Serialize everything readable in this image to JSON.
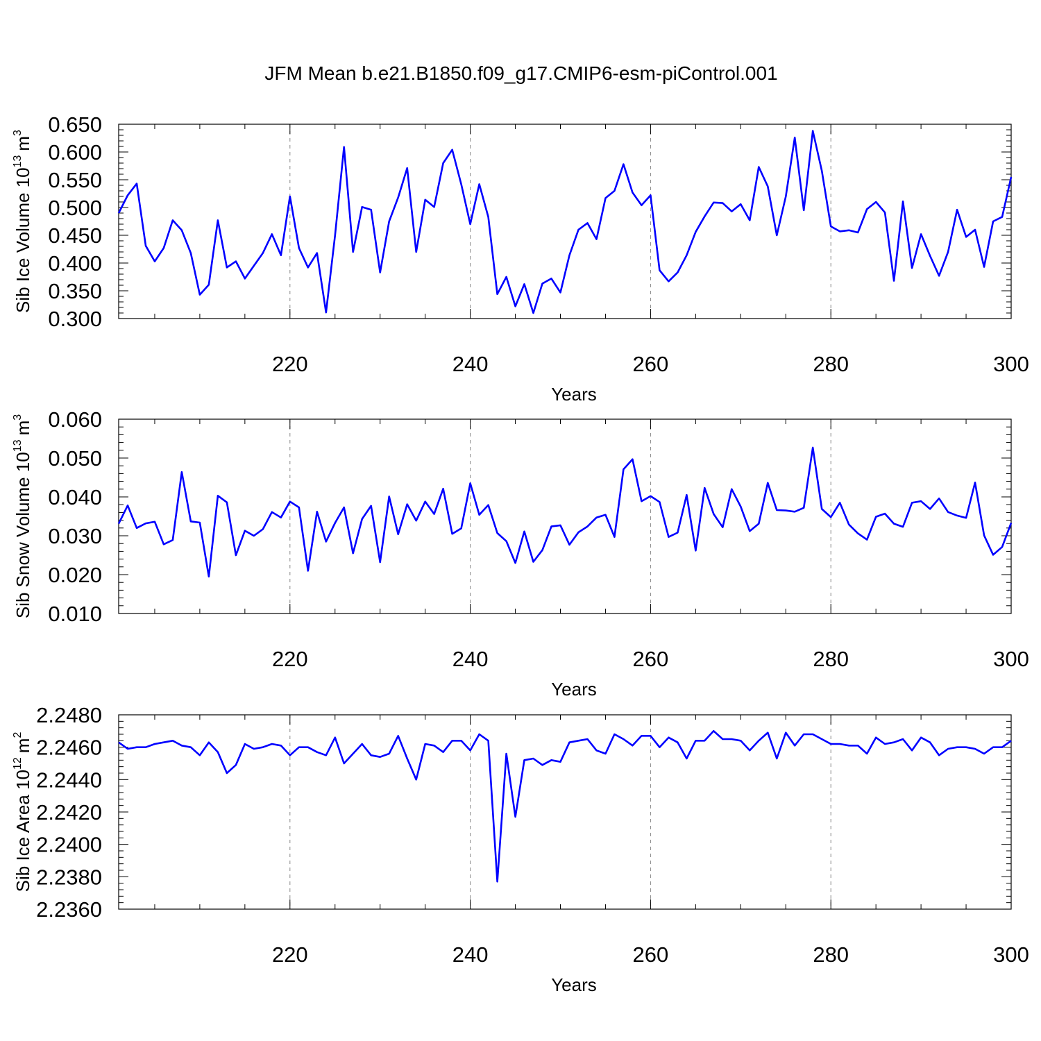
{
  "figure": {
    "title": "JFM Mean b.e21.B1850.f09_g17.CMIP6-esm-piControl.001"
  },
  "colors": {
    "series": "#0000ff",
    "axis": "#000000",
    "grid": "#888888"
  },
  "chart_data": [
    {
      "type": "line",
      "xlabel": "Years",
      "ylabel": "Sib Ice Volume 10",
      "ylabel_exponent": "13",
      "ylabel_unit": "m",
      "ylabel_unit_power": "3",
      "xlim": [
        201,
        300
      ],
      "ylim": [
        0.3,
        0.65
      ],
      "grid": "x-dashed",
      "xticks": [
        220,
        240,
        260,
        280,
        300
      ],
      "xtick_labels": [
        "220",
        "240",
        "260",
        "280",
        "300"
      ],
      "yticks": [
        0.3,
        0.35,
        0.4,
        0.45,
        0.5,
        0.55,
        0.6,
        0.65
      ],
      "ytick_labels": [
        "0.300",
        "0.350",
        "0.400",
        "0.450",
        "0.500",
        "0.550",
        "0.600",
        "0.650"
      ],
      "x_start": 201,
      "values": [
        0.49,
        0.522,
        0.543,
        0.431,
        0.403,
        0.427,
        0.477,
        0.459,
        0.418,
        0.343,
        0.361,
        0.477,
        0.392,
        0.403,
        0.372,
        0.395,
        0.418,
        0.452,
        0.414,
        0.52,
        0.427,
        0.392,
        0.418,
        0.311,
        0.45,
        0.609,
        0.42,
        0.501,
        0.496,
        0.383,
        0.475,
        0.518,
        0.571,
        0.42,
        0.514,
        0.501,
        0.58,
        0.604,
        0.542,
        0.47,
        0.542,
        0.483,
        0.344,
        0.375,
        0.322,
        0.362,
        0.31,
        0.363,
        0.372,
        0.347,
        0.414,
        0.46,
        0.472,
        0.443,
        0.517,
        0.53,
        0.578,
        0.527,
        0.504,
        0.522,
        0.387,
        0.367,
        0.383,
        0.414,
        0.456,
        0.484,
        0.509,
        0.508,
        0.493,
        0.506,
        0.477,
        0.573,
        0.538,
        0.45,
        0.52,
        0.626,
        0.495,
        0.638,
        0.566,
        0.466,
        0.457,
        0.459,
        0.455,
        0.497,
        0.51,
        0.491,
        0.368,
        0.511,
        0.391,
        0.452,
        0.413,
        0.377,
        0.42,
        0.496,
        0.447,
        0.46,
        0.393,
        0.475,
        0.483,
        0.555
      ]
    },
    {
      "type": "line",
      "xlabel": "Years",
      "ylabel": "Sib Snow Volume 10",
      "ylabel_exponent": "13",
      "ylabel_unit": "m",
      "ylabel_unit_power": "3",
      "xlim": [
        201,
        300
      ],
      "ylim": [
        0.01,
        0.06
      ],
      "grid": "x-dashed",
      "xticks": [
        220,
        240,
        260,
        280,
        300
      ],
      "xtick_labels": [
        "220",
        "240",
        "260",
        "280",
        "300"
      ],
      "yticks": [
        0.01,
        0.02,
        0.03,
        0.04,
        0.05,
        0.06
      ],
      "ytick_labels": [
        "0.010",
        "0.020",
        "0.030",
        "0.040",
        "0.050",
        "0.060"
      ],
      "x_start": 201,
      "values": [
        0.0331,
        0.0378,
        0.032,
        0.0332,
        0.0336,
        0.0278,
        0.0289,
        0.0464,
        0.0337,
        0.0334,
        0.0195,
        0.0403,
        0.0386,
        0.025,
        0.0313,
        0.03,
        0.0317,
        0.0361,
        0.0347,
        0.0388,
        0.0373,
        0.021,
        0.0362,
        0.0285,
        0.0333,
        0.0373,
        0.0255,
        0.0343,
        0.0377,
        0.0232,
        0.0401,
        0.0304,
        0.0381,
        0.0339,
        0.0388,
        0.0356,
        0.0421,
        0.0305,
        0.0319,
        0.0435,
        0.0354,
        0.0379,
        0.0307,
        0.0286,
        0.023,
        0.0311,
        0.0233,
        0.0263,
        0.0324,
        0.0327,
        0.0277,
        0.0309,
        0.0324,
        0.0347,
        0.0354,
        0.0297,
        0.0471,
        0.0497,
        0.0389,
        0.0402,
        0.0387,
        0.0297,
        0.0308,
        0.0405,
        0.0262,
        0.0423,
        0.0356,
        0.0322,
        0.042,
        0.0375,
        0.0312,
        0.0331,
        0.0436,
        0.0366,
        0.0365,
        0.0362,
        0.0372,
        0.0527,
        0.0369,
        0.0348,
        0.0385,
        0.0329,
        0.0306,
        0.029,
        0.0349,
        0.0357,
        0.0331,
        0.0323,
        0.0385,
        0.0389,
        0.0369,
        0.0396,
        0.0361,
        0.0352,
        0.0346,
        0.0437,
        0.0301,
        0.0251,
        0.0271,
        0.0333
      ]
    },
    {
      "type": "line",
      "xlabel": "Years",
      "ylabel": "Sib Ice Area 10",
      "ylabel_exponent": "12",
      "ylabel_unit": "m",
      "ylabel_unit_power": "2",
      "xlim": [
        201,
        300
      ],
      "ylim": [
        2.236,
        2.248
      ],
      "grid": "x-dashed",
      "xticks": [
        220,
        240,
        260,
        280,
        300
      ],
      "xtick_labels": [
        "220",
        "240",
        "260",
        "280",
        "300"
      ],
      "yticks": [
        2.236,
        2.238,
        2.24,
        2.242,
        2.244,
        2.246,
        2.248
      ],
      "ytick_labels": [
        "2.2360",
        "2.2380",
        "2.2400",
        "2.2420",
        "2.2440",
        "2.2460",
        "2.2480"
      ],
      "x_start": 201,
      "values": [
        2.2463,
        2.2459,
        2.246,
        2.246,
        2.2462,
        2.2463,
        2.2464,
        2.2461,
        2.246,
        2.2455,
        2.2463,
        2.2457,
        2.2444,
        2.2449,
        2.2462,
        2.2459,
        2.246,
        2.2462,
        2.2461,
        2.2455,
        2.246,
        2.246,
        2.2457,
        2.2455,
        2.2466,
        2.245,
        2.2456,
        2.2462,
        2.2455,
        2.2454,
        2.2456,
        2.2467,
        2.2453,
        2.244,
        2.2462,
        2.2461,
        2.2457,
        2.2464,
        2.2464,
        2.2458,
        2.2468,
        2.2464,
        2.2377,
        2.2456,
        2.2417,
        2.2452,
        2.2453,
        2.2449,
        2.2452,
        2.2451,
        2.2463,
        2.2464,
        2.2465,
        2.2458,
        2.2456,
        2.2468,
        2.2465,
        2.2461,
        2.2467,
        2.2467,
        2.246,
        2.2466,
        2.2463,
        2.2453,
        2.2464,
        2.2464,
        2.247,
        2.2465,
        2.2465,
        2.2464,
        2.2458,
        2.2464,
        2.2469,
        2.2453,
        2.2469,
        2.2461,
        2.2468,
        2.2468,
        2.2465,
        2.2462,
        2.2462,
        2.2461,
        2.2461,
        2.2456,
        2.2466,
        2.2462,
        2.2463,
        2.2465,
        2.2458,
        2.2466,
        2.2463,
        2.2455,
        2.2459,
        2.246,
        2.246,
        2.2459,
        2.2456,
        2.246,
        2.246,
        2.2464
      ]
    }
  ]
}
